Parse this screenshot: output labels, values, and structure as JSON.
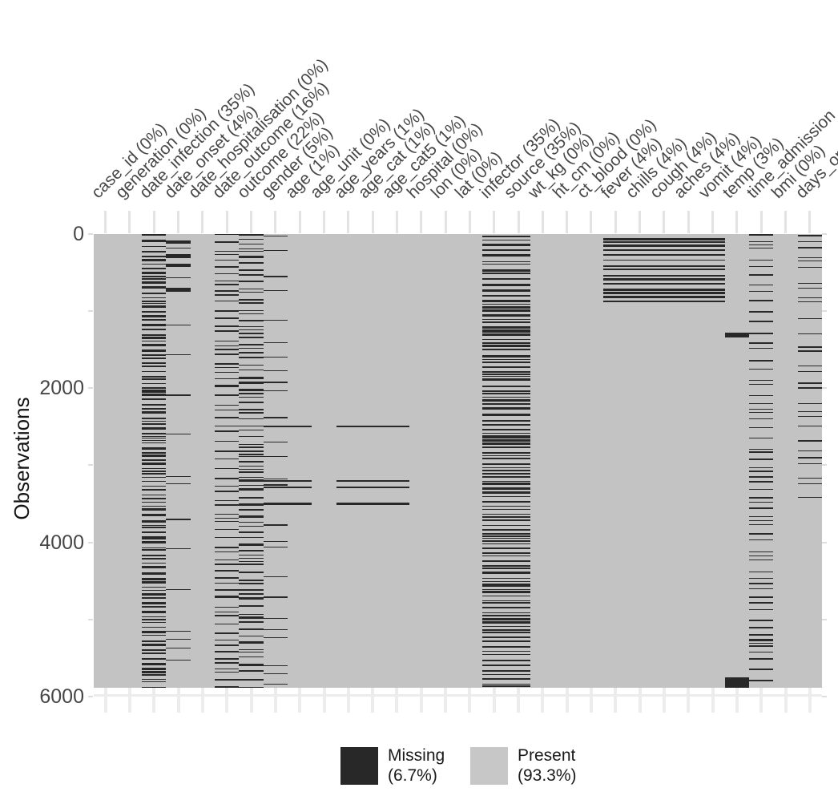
{
  "figure": {
    "y_axis_title": "Observations",
    "colors": {
      "missing": "#282828",
      "present": "#c3c3c3",
      "legend_present_swatch": "#c7c7c7",
      "axis_text": "#474747",
      "grid": "#ececec"
    },
    "legend": {
      "position": "bottom",
      "items": [
        {
          "label": "Missing",
          "pct": "(6.7%)",
          "color": "#282828"
        },
        {
          "label": "Present",
          "pct": "(93.3%)",
          "color": "#c7c7c7"
        }
      ]
    }
  },
  "chart_data": {
    "type": "heatmap",
    "subtype": "missing-data-matrix",
    "ylabel": "Observations",
    "ylim": [
      0,
      6000
    ],
    "y_ticks": [
      0,
      2000,
      4000,
      6000
    ],
    "y_minor_tick_step": 1000,
    "n_observations": 5888,
    "x_axis_position": "top",
    "legend_position": "bottom",
    "overall_missing_pct": 6.7,
    "overall_present_pct": 93.3,
    "columns": [
      {
        "name": "case_id",
        "label": "case_id (0%)",
        "missing_pct": 0,
        "pattern": {
          "type": "none"
        }
      },
      {
        "name": "generation",
        "label": "generation (0%)",
        "missing_pct": 0,
        "pattern": {
          "type": "none"
        }
      },
      {
        "name": "date_infection",
        "label": "date_infection (35%)",
        "missing_pct": 35,
        "pattern": {
          "type": "random",
          "density": 0.35,
          "seed": "inf"
        }
      },
      {
        "name": "date_onset",
        "label": "date_onset (4%)",
        "missing_pct": 4,
        "pattern": {
          "type": "random+runs",
          "density": 0.03,
          "seed": "ons",
          "runs": [
            [
              80,
              128
            ],
            [
              262,
              308
            ],
            [
              388,
              424
            ],
            [
              700,
              752
            ]
          ]
        }
      },
      {
        "name": "date_hospitalisation",
        "label": "date_hospitalisation (0%)",
        "missing_pct": 0,
        "pattern": {
          "type": "none"
        }
      },
      {
        "name": "date_outcome",
        "label": "date_outcome (16%)",
        "missing_pct": 16,
        "pattern": {
          "type": "random",
          "density": 0.16,
          "seed": "out1"
        }
      },
      {
        "name": "outcome",
        "label": "outcome (22%)",
        "missing_pct": 22,
        "pattern": {
          "type": "random",
          "density": 0.22,
          "seed": "out2"
        }
      },
      {
        "name": "gender",
        "label": "gender (5%)",
        "missing_pct": 5,
        "pattern": {
          "type": "random+runs",
          "density": 0.042,
          "seed": "gen",
          "runs": [
            [
              2486,
              2512
            ],
            [
              3192,
              3216
            ],
            [
              3272,
              3296
            ],
            [
              3490,
              3514
            ]
          ]
        }
      },
      {
        "name": "age",
        "label": "age (1%)",
        "missing_pct": 1,
        "pattern": {
          "type": "runs",
          "runs": [
            [
              2486,
              2512
            ],
            [
              3192,
              3216
            ],
            [
              3272,
              3296
            ],
            [
              3490,
              3514
            ]
          ]
        }
      },
      {
        "name": "age_unit",
        "label": "age_unit (0%)",
        "missing_pct": 0,
        "pattern": {
          "type": "none"
        }
      },
      {
        "name": "age_years",
        "label": "age_years (1%)",
        "missing_pct": 1,
        "pattern": {
          "type": "runs",
          "runs": [
            [
              2486,
              2512
            ],
            [
              3192,
              3216
            ],
            [
              3272,
              3296
            ],
            [
              3490,
              3514
            ]
          ]
        }
      },
      {
        "name": "age_cat",
        "label": "age_cat (1%)",
        "missing_pct": 1,
        "pattern": {
          "type": "runs",
          "runs": [
            [
              2486,
              2512
            ],
            [
              3192,
              3216
            ],
            [
              3272,
              3296
            ],
            [
              3490,
              3514
            ]
          ]
        }
      },
      {
        "name": "age_cat5",
        "label": "age_cat5 (1%)",
        "missing_pct": 1,
        "pattern": {
          "type": "runs",
          "runs": [
            [
              2486,
              2512
            ],
            [
              3192,
              3216
            ],
            [
              3272,
              3296
            ],
            [
              3490,
              3514
            ]
          ]
        }
      },
      {
        "name": "hospital",
        "label": "hospital (0%)",
        "missing_pct": 0,
        "pattern": {
          "type": "none"
        }
      },
      {
        "name": "lon",
        "label": "lon (0%)",
        "missing_pct": 0,
        "pattern": {
          "type": "none"
        }
      },
      {
        "name": "lat",
        "label": "lat (0%)",
        "missing_pct": 0,
        "pattern": {
          "type": "none"
        }
      },
      {
        "name": "infector",
        "label": "infector (35%)",
        "missing_pct": 35,
        "pattern": {
          "type": "random",
          "density": 0.35,
          "seed": "contact"
        }
      },
      {
        "name": "source",
        "label": "source (35%)",
        "missing_pct": 35,
        "pattern": {
          "type": "random",
          "density": 0.35,
          "seed": "contact"
        }
      },
      {
        "name": "wt_kg",
        "label": "wt_kg (0%)",
        "missing_pct": 0,
        "pattern": {
          "type": "none"
        }
      },
      {
        "name": "ht_cm",
        "label": "ht_cm (0%)",
        "missing_pct": 0,
        "pattern": {
          "type": "none"
        }
      },
      {
        "name": "ct_blood",
        "label": "ct_blood (0%)",
        "missing_pct": 0,
        "pattern": {
          "type": "none"
        }
      },
      {
        "name": "fever",
        "label": "fever (4%)",
        "missing_pct": 4,
        "pattern": {
          "type": "random",
          "density": 0.32,
          "seed": "sym",
          "range": [
            40,
            880
          ]
        }
      },
      {
        "name": "chills",
        "label": "chills (4%)",
        "missing_pct": 4,
        "pattern": {
          "type": "random",
          "density": 0.32,
          "seed": "sym",
          "range": [
            40,
            880
          ]
        }
      },
      {
        "name": "cough",
        "label": "cough (4%)",
        "missing_pct": 4,
        "pattern": {
          "type": "random",
          "density": 0.32,
          "seed": "sym",
          "range": [
            40,
            880
          ]
        }
      },
      {
        "name": "aches",
        "label": "aches (4%)",
        "missing_pct": 4,
        "pattern": {
          "type": "random",
          "density": 0.32,
          "seed": "sym",
          "range": [
            40,
            880
          ]
        }
      },
      {
        "name": "vomit",
        "label": "vomit (4%)",
        "missing_pct": 4,
        "pattern": {
          "type": "random",
          "density": 0.32,
          "seed": "sym",
          "range": [
            40,
            880
          ]
        }
      },
      {
        "name": "temp",
        "label": "temp (3%)",
        "missing_pct": 3,
        "pattern": {
          "type": "runs",
          "runs": [
            [
              1280,
              1345
            ],
            [
              5752,
              5888
            ]
          ]
        }
      },
      {
        "name": "time_admission",
        "label": "time_admission",
        "pattern": {
          "type": "random",
          "density": 0.13,
          "seed": "adm"
        }
      },
      {
        "name": "bmi",
        "label": "bmi (0%)",
        "missing_pct": 0,
        "pattern": {
          "type": "none"
        }
      },
      {
        "name": "days_onset_hosp",
        "label": "days_onset_hosp",
        "pattern": {
          "type": "random",
          "density": 0.085,
          "seed": "days",
          "range": [
            0,
            3520
          ]
        }
      }
    ]
  }
}
